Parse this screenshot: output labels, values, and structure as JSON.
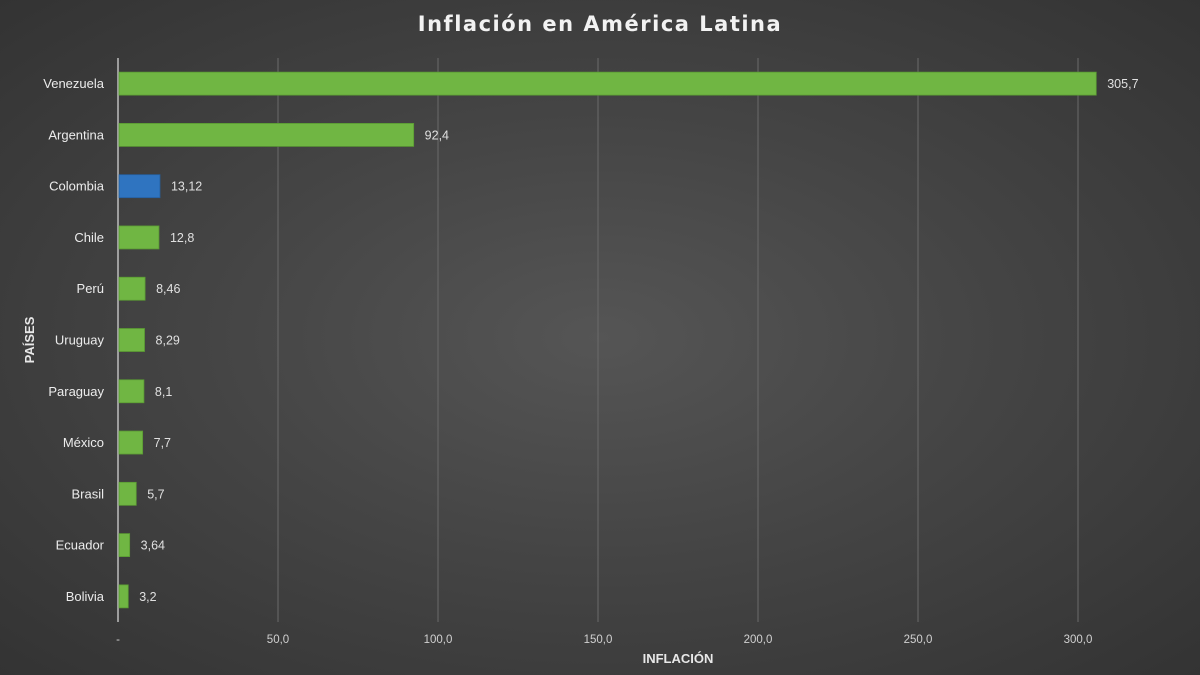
{
  "chart_data": {
    "type": "bar",
    "orientation": "horizontal",
    "title": "Inflación en América Latina",
    "xlabel": "INFLACIÓN",
    "ylabel": "PAÍSES",
    "categories": [
      "Venezuela",
      "Argentina",
      "Colombia",
      "Chile",
      "Perú",
      "Uruguay",
      "Paraguay",
      "México",
      "Brasil",
      "Ecuador",
      "Bolivia"
    ],
    "values": [
      305.7,
      92.4,
      13.12,
      12.8,
      8.46,
      8.29,
      8.1,
      7.7,
      5.7,
      3.64,
      3.2
    ],
    "value_labels": [
      "305,7",
      "92,4",
      "13,12",
      "12,8",
      "8,46",
      "8,29",
      "8,1",
      "7,7",
      "5,7",
      "3,64",
      "3,2"
    ],
    "highlight_category": "Colombia",
    "xlim": [
      0,
      300
    ],
    "xticks": [
      0,
      50,
      100,
      150,
      200,
      250,
      300
    ],
    "xtick_labels": [
      "-",
      "50,0",
      "100,0",
      "150,0",
      "200,0",
      "250,0",
      "300,0"
    ],
    "grid": "vertical",
    "legend": "none",
    "colors": {
      "bar": "#70b643",
      "bar_edge": "#5a9a33",
      "highlight": "#2f74c0",
      "highlight_edge": "#255f9e",
      "grid": "#6a6a6a",
      "axis": "#bdbdbd"
    }
  }
}
